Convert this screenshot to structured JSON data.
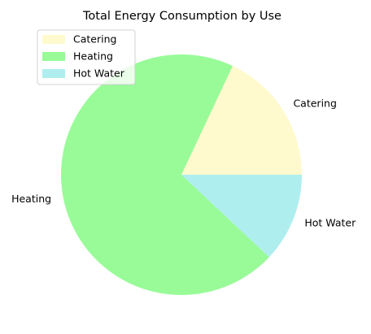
{
  "chart_data": {
    "type": "pie",
    "title": "Total Energy Consumption by Use",
    "slices": [
      {
        "label": "Catering",
        "value": 18,
        "color": "#fffacd"
      },
      {
        "label": "Heating",
        "value": 70,
        "color": "#98fb98"
      },
      {
        "label": "Hot Water",
        "value": 12,
        "color": "#afeeee"
      }
    ],
    "start_angle_deg": 0,
    "direction": "counterclockwise",
    "legend": {
      "placement": "upper-left",
      "entries": [
        "Catering",
        "Heating",
        "Hot Water"
      ]
    }
  }
}
